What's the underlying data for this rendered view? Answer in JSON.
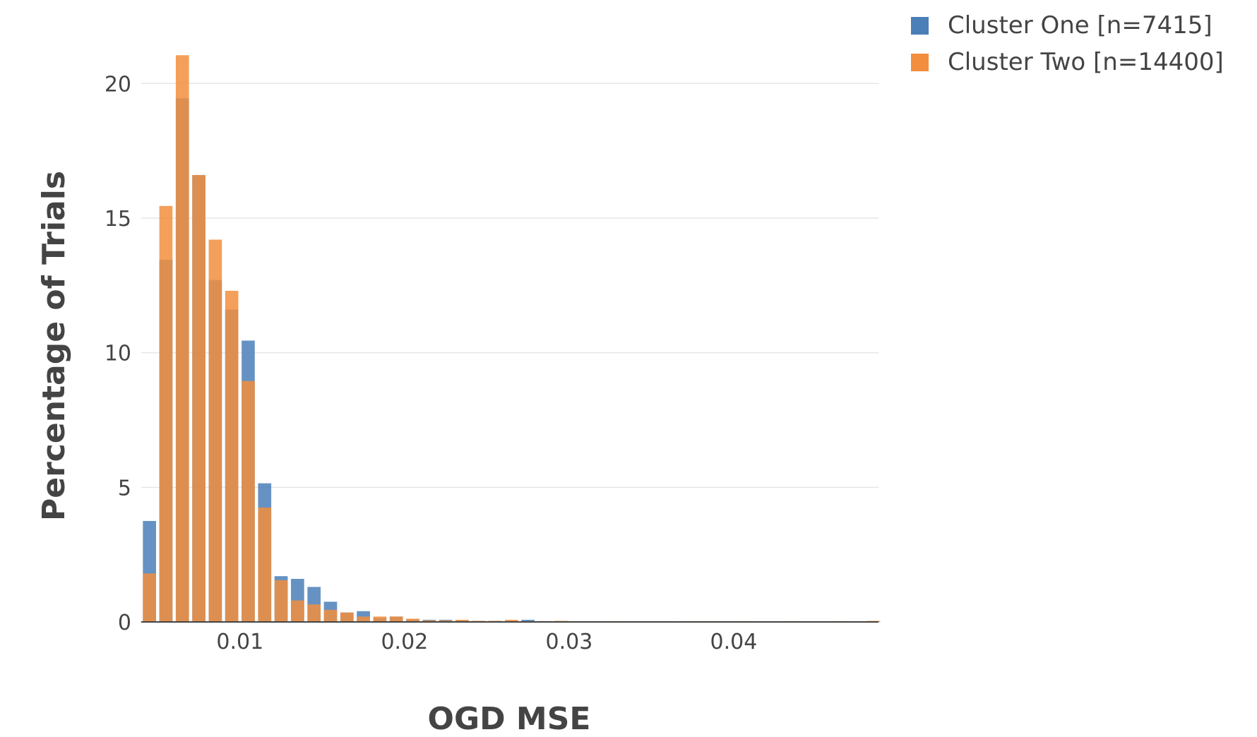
{
  "chart_data": {
    "type": "bar",
    "title": "",
    "xlabel": "OGD MSE",
    "ylabel": "Percentage of Trials",
    "xlim": [
      0.004,
      0.0488
    ],
    "ylim": [
      0,
      22
    ],
    "x_ticks": [
      0.01,
      0.02,
      0.03,
      0.04
    ],
    "x_tick_labels": [
      "0.01",
      "0.02",
      "0.03",
      "0.04"
    ],
    "y_ticks": [
      0,
      5,
      10,
      15,
      20
    ],
    "y_tick_labels": [
      "0",
      "5",
      "10",
      "15",
      "20"
    ],
    "grid": true,
    "barmode": "overlay",
    "bin_width": 0.001,
    "legend_position": "top-right",
    "x": [
      0.0045,
      0.0055,
      0.0065,
      0.0075,
      0.0085,
      0.0095,
      0.0105,
      0.0115,
      0.0125,
      0.0135,
      0.0145,
      0.0155,
      0.0165,
      0.0175,
      0.0185,
      0.0195,
      0.0205,
      0.0215,
      0.0225,
      0.0235,
      0.0245,
      0.0255,
      0.0265,
      0.0275,
      0.0285,
      0.0295,
      0.0305,
      0.0315,
      0.0325,
      0.0335,
      0.0345,
      0.0355,
      0.0365,
      0.0375,
      0.0385,
      0.0395,
      0.0405,
      0.0415,
      0.0425,
      0.0435,
      0.0445,
      0.0455,
      0.0465,
      0.0475,
      0.0485
    ],
    "series": [
      {
        "name": "Cluster One [n=7415]",
        "color": "#4a7fb8",
        "values": [
          3.75,
          13.45,
          19.45,
          16.6,
          12.7,
          11.6,
          10.45,
          5.15,
          1.7,
          1.6,
          1.3,
          0.75,
          0.35,
          0.4,
          0.15,
          0.2,
          0.1,
          0.08,
          0.08,
          0.06,
          0.04,
          0.04,
          0.04,
          0.08,
          0.03,
          0.02,
          0.02,
          0.02,
          0.02,
          0.02,
          0.02,
          0.02,
          0.01,
          0.02,
          0.02,
          0.02,
          0.01,
          0.01,
          0.01,
          0.01,
          0.01,
          0,
          0.01,
          0,
          0.01
        ]
      },
      {
        "name": "Cluster Two [n=14400]",
        "color": "#f28e3d",
        "values": [
          1.8,
          15.45,
          21.05,
          16.6,
          14.2,
          12.3,
          8.95,
          4.25,
          1.55,
          0.8,
          0.65,
          0.45,
          0.35,
          0.2,
          0.2,
          0.2,
          0.12,
          0.06,
          0.06,
          0.08,
          0.04,
          0.04,
          0.08,
          0.03,
          0.03,
          0.04,
          0.03,
          0.03,
          0.03,
          0.03,
          0.03,
          0.03,
          0.02,
          0.03,
          0.03,
          0.03,
          0.03,
          0.02,
          0.02,
          0.03,
          0.02,
          0.02,
          0.03,
          0.02,
          0.04
        ]
      }
    ]
  }
}
